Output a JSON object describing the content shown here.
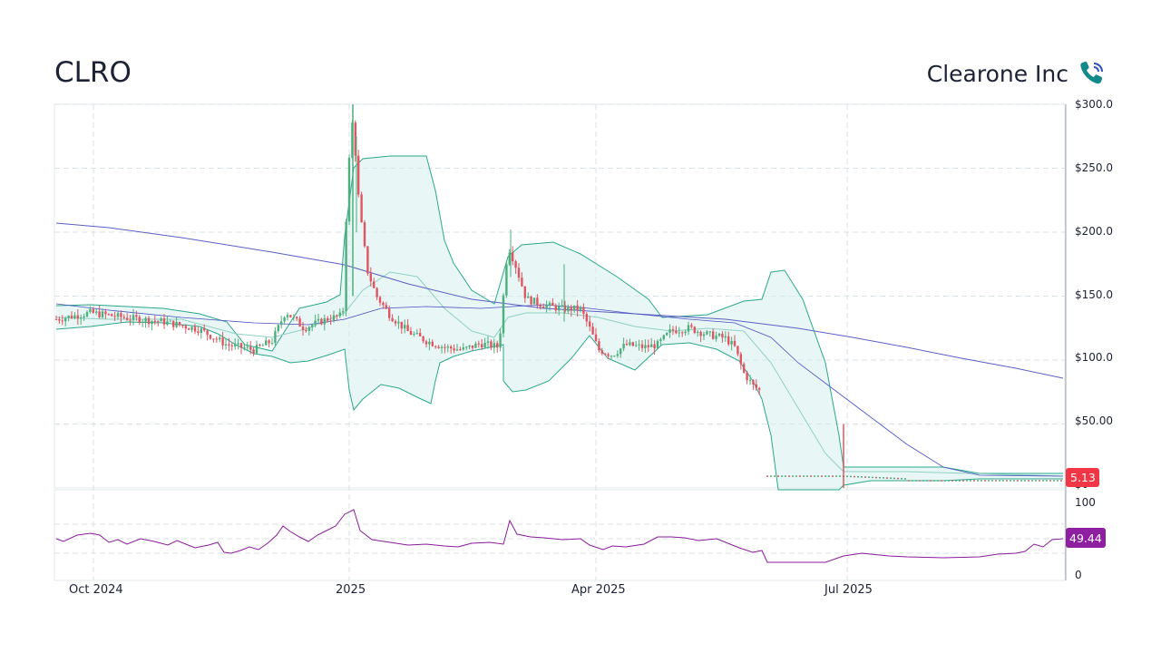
{
  "header": {
    "ticker": "CLRO",
    "company": "Clearone Inc",
    "phone_icon": "phone-ring-icon"
  },
  "colors": {
    "up": "#26a69a",
    "up_candle": "#4caf7d",
    "down": "#e05561",
    "band_fill": "#d6efed",
    "band_line": "#2aa889",
    "sma_long": "#5c5fc4",
    "sma_mid": "#4b4fc4",
    "rsi": "#8b1a9c",
    "price_badge": "#f23645",
    "rsi_badge": "#8e1fa0",
    "grid": "#d9e2e6"
  },
  "chart_data": [
    {
      "type": "candlestick",
      "symbol": "CLRO",
      "y_ticks": [
        "$300.0",
        "$250.0",
        "$200.0",
        "$150.0",
        "$100.0",
        "$50.00",
        "$0"
      ],
      "ylim": [
        0,
        300
      ],
      "x_ticks": [
        "Oct 2024",
        "2025",
        "Apr 2025",
        "Jul 2025"
      ],
      "last_price_label": "5.13",
      "last_price": 5.13,
      "overlays": [
        "Bollinger Bands",
        "Moving Average (long)",
        "Moving Average (mid)"
      ],
      "key_points": [
        {
          "date": "Sep 2024",
          "close": 132
        },
        {
          "date": "Nov 2024",
          "close": 112
        },
        {
          "date": "Dec 2024",
          "close": 138
        },
        {
          "date": "Jan 2025",
          "high": 300,
          "close": 220
        },
        {
          "date": "Feb 2025",
          "close": 115
        },
        {
          "date": "Mar 2025",
          "high": 202,
          "close": 145
        },
        {
          "date": "Apr 2025",
          "close": 105
        },
        {
          "date": "May 2025",
          "close": 125
        },
        {
          "date": "Jun 2025",
          "close": 70
        },
        {
          "date": "Jul 2025",
          "close": 8
        },
        {
          "date": "Sep 2025",
          "close": 5.13
        }
      ]
    },
    {
      "type": "line",
      "name": "RSI",
      "y_ticks": [
        "100",
        "0"
      ],
      "ylim": [
        0,
        100
      ],
      "last_value_label": "49.44",
      "last_value": 49.44
    }
  ]
}
